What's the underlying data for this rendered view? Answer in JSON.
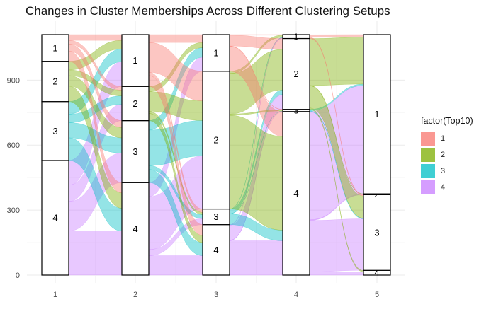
{
  "chart_data": {
    "type": "alluvial",
    "title": "Changes in Cluster Memberships Across Different Clustering Setups",
    "xlabel": "",
    "ylabel": "",
    "x_ticks": [
      "1",
      "2",
      "3",
      "4",
      "5"
    ],
    "y_ticks": [
      0,
      300,
      600,
      900
    ],
    "ylim": [
      0,
      1110
    ],
    "total": 1110,
    "legend": {
      "title": "factor(Top10)",
      "position": "right",
      "entries": [
        {
          "label": "1",
          "color": "#F8766D"
        },
        {
          "label": "2",
          "color": "#7CAE00"
        },
        {
          "label": "3",
          "color": "#00BFC4"
        },
        {
          "label": "4",
          "color": "#C77CFF"
        }
      ]
    },
    "axes": [
      {
        "name": "1",
        "strata": [
          {
            "label": "4",
            "count": 529
          },
          {
            "label": "3",
            "count": 272
          },
          {
            "label": "2",
            "count": 186
          },
          {
            "label": "1",
            "count": 123
          }
        ]
      },
      {
        "name": "2",
        "strata": [
          {
            "label": "4",
            "count": 427
          },
          {
            "label": "3",
            "count": 286
          },
          {
            "label": "2",
            "count": 158
          },
          {
            "label": "1",
            "count": 239
          }
        ]
      },
      {
        "name": "3",
        "strata": [
          {
            "label": "4",
            "count": 233
          },
          {
            "label": "3",
            "count": 72
          },
          {
            "label": "2",
            "count": 636
          },
          {
            "label": "1",
            "count": 169
          }
        ]
      },
      {
        "name": "4",
        "strata": [
          {
            "label": "4",
            "count": 755
          },
          {
            "label": "3",
            "count": 10
          },
          {
            "label": "2",
            "count": 327
          },
          {
            "label": "1",
            "count": 18
          }
        ]
      },
      {
        "name": "5",
        "strata": [
          {
            "label": "4",
            "count": 22
          },
          {
            "label": "3",
            "count": 349
          },
          {
            "label": "2",
            "count": 4
          },
          {
            "label": "1",
            "count": 735
          }
        ]
      }
    ]
  }
}
